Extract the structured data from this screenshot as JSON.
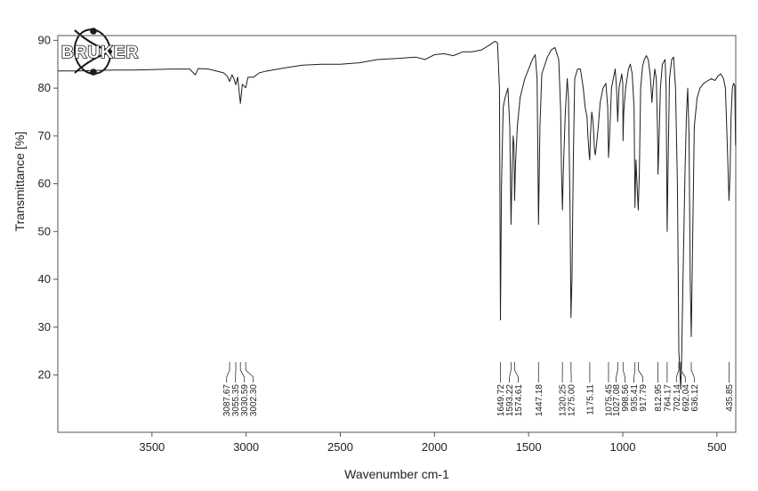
{
  "logo": {
    "text": "BRUKER"
  },
  "chart_data": {
    "type": "line",
    "xlabel": "Wavenumber cm-1",
    "ylabel": "Transmittance [%]",
    "xlim": [
      4000,
      400
    ],
    "xreverse": true,
    "ylim": [
      8,
      91
    ],
    "xticks": [
      3500,
      3000,
      2500,
      2000,
      1500,
      1000,
      500
    ],
    "yticks": [
      20,
      30,
      40,
      50,
      60,
      70,
      80,
      90
    ],
    "grid": false,
    "series": [
      {
        "points": [
          [
            3999,
            83.6
          ],
          [
            3900,
            83.6
          ],
          [
            3800,
            83.7
          ],
          [
            3700,
            83.8
          ],
          [
            3600,
            83.8
          ],
          [
            3500,
            83.9
          ],
          [
            3400,
            84.0
          ],
          [
            3300,
            84.0
          ],
          [
            3270,
            82.8
          ],
          [
            3255,
            84.1
          ],
          [
            3200,
            84.0
          ],
          [
            3120,
            83.2
          ],
          [
            3100,
            82.5
          ],
          [
            3087.67,
            81.4
          ],
          [
            3075,
            82.8
          ],
          [
            3065,
            82.0
          ],
          [
            3055.35,
            80.7
          ],
          [
            3045,
            82.3
          ],
          [
            3030.59,
            76.8
          ],
          [
            3020,
            80.8
          ],
          [
            3002.3,
            80.1
          ],
          [
            2990,
            82.3
          ],
          [
            2960,
            82.3
          ],
          [
            2930,
            83.2
          ],
          [
            2900,
            83.5
          ],
          [
            2800,
            84.2
          ],
          [
            2700,
            84.8
          ],
          [
            2600,
            85.0
          ],
          [
            2500,
            85.0
          ],
          [
            2400,
            85.3
          ],
          [
            2300,
            86.0
          ],
          [
            2200,
            86.2
          ],
          [
            2100,
            86.5
          ],
          [
            2050,
            86.0
          ],
          [
            2000,
            87.0
          ],
          [
            1950,
            87.2
          ],
          [
            1900,
            86.8
          ],
          [
            1850,
            87.6
          ],
          [
            1800,
            87.6
          ],
          [
            1750,
            88.0
          ],
          [
            1700,
            89.2
          ],
          [
            1680,
            89.8
          ],
          [
            1665,
            89.5
          ],
          [
            1655,
            80
          ],
          [
            1649.72,
            31.5
          ],
          [
            1644,
            60
          ],
          [
            1635,
            76
          ],
          [
            1625,
            78
          ],
          [
            1610,
            80
          ],
          [
            1600,
            72
          ],
          [
            1593.22,
            51.5
          ],
          [
            1588,
            62
          ],
          [
            1582,
            70
          ],
          [
            1578,
            68
          ],
          [
            1574.61,
            56.5
          ],
          [
            1570,
            64
          ],
          [
            1560,
            72
          ],
          [
            1545,
            78
          ],
          [
            1520,
            82
          ],
          [
            1500,
            84
          ],
          [
            1480,
            86
          ],
          [
            1465,
            87
          ],
          [
            1455,
            82
          ],
          [
            1447.18,
            51.5
          ],
          [
            1440,
            72
          ],
          [
            1430,
            83
          ],
          [
            1400,
            86.5
          ],
          [
            1380,
            88
          ],
          [
            1360,
            88.5
          ],
          [
            1340,
            86
          ],
          [
            1330,
            76
          ],
          [
            1325,
            62
          ],
          [
            1320.25,
            54.5
          ],
          [
            1316,
            62
          ],
          [
            1305,
            75
          ],
          [
            1295,
            82
          ],
          [
            1288,
            78
          ],
          [
            1280,
            55
          ],
          [
            1275.0,
            32
          ],
          [
            1270,
            40
          ],
          [
            1262,
            66
          ],
          [
            1255,
            82
          ],
          [
            1240,
            84
          ],
          [
            1225,
            84
          ],
          [
            1210,
            80
          ],
          [
            1200,
            76
          ],
          [
            1190,
            74
          ],
          [
            1185,
            70
          ],
          [
            1178,
            66
          ],
          [
            1175.11,
            65
          ],
          [
            1172,
            70
          ],
          [
            1165,
            75
          ],
          [
            1158,
            73
          ],
          [
            1150,
            67
          ],
          [
            1146,
            66
          ],
          [
            1140,
            68
          ],
          [
            1130,
            72
          ],
          [
            1120,
            77
          ],
          [
            1105,
            80
          ],
          [
            1090,
            81
          ],
          [
            1080,
            76
          ],
          [
            1075.45,
            65.5
          ],
          [
            1070,
            70
          ],
          [
            1060,
            80
          ],
          [
            1050,
            82
          ],
          [
            1040,
            84
          ],
          [
            1033,
            80
          ],
          [
            1027.08,
            73
          ],
          [
            1020,
            80
          ],
          [
            1005,
            83
          ],
          [
            1000,
            81
          ],
          [
            998.56,
            69
          ],
          [
            995,
            75
          ],
          [
            985,
            80
          ],
          [
            970,
            84
          ],
          [
            960,
            85
          ],
          [
            950,
            83
          ],
          [
            940,
            76
          ],
          [
            935.41,
            55
          ],
          [
            930,
            65
          ],
          [
            922,
            58
          ],
          [
            917.79,
            54.5
          ],
          [
            912,
            62
          ],
          [
            905,
            80
          ],
          [
            895,
            84.5
          ],
          [
            885,
            86
          ],
          [
            875,
            86.8
          ],
          [
            865,
            86
          ],
          [
            855,
            83
          ],
          [
            850,
            80
          ],
          [
            845,
            77
          ],
          [
            840,
            80
          ],
          [
            830,
            84
          ],
          [
            822,
            82
          ],
          [
            815,
            70
          ],
          [
            812.95,
            62
          ],
          [
            808,
            68
          ],
          [
            800,
            80
          ],
          [
            790,
            85
          ],
          [
            775,
            86
          ],
          [
            770,
            80
          ],
          [
            764.17,
            50
          ],
          [
            760,
            62
          ],
          [
            752,
            82
          ],
          [
            740,
            86
          ],
          [
            730,
            86.5
          ],
          [
            720,
            80
          ],
          [
            710,
            60
          ],
          [
            705,
            40
          ],
          [
            702.14,
            25
          ],
          [
            698,
            22
          ],
          [
            692.04,
            17
          ],
          [
            688,
            22
          ],
          [
            680,
            40
          ],
          [
            670,
            62
          ],
          [
            662,
            74
          ],
          [
            655,
            80
          ],
          [
            648,
            70
          ],
          [
            642,
            40
          ],
          [
            636.12,
            28
          ],
          [
            630,
            45
          ],
          [
            620,
            72
          ],
          [
            605,
            78
          ],
          [
            590,
            80
          ],
          [
            570,
            81
          ],
          [
            550,
            81.5
          ],
          [
            530,
            82
          ],
          [
            510,
            81.6
          ],
          [
            495,
            82.5
          ],
          [
            480,
            83
          ],
          [
            465,
            82
          ],
          [
            455,
            80
          ],
          [
            445,
            68
          ],
          [
            435.85,
            56.5
          ],
          [
            430,
            62
          ],
          [
            425,
            74
          ],
          [
            418,
            80
          ],
          [
            412,
            81
          ],
          [
            405,
            80.5
          ],
          [
            401,
            68
          ]
        ]
      }
    ],
    "annotations": [
      "3087.67",
      "3055.35",
      "3030.59",
      "3002.30",
      "1649.72",
      "1593.22",
      "1574.61",
      "1447.18",
      "1320.25",
      "1275.00",
      "1175.11",
      "1075.45",
      "1027.08",
      "998.56",
      "935.41",
      "917.79",
      "812.95",
      "764.17",
      "702.14",
      "692.04",
      "636.12",
      "435.85"
    ]
  }
}
